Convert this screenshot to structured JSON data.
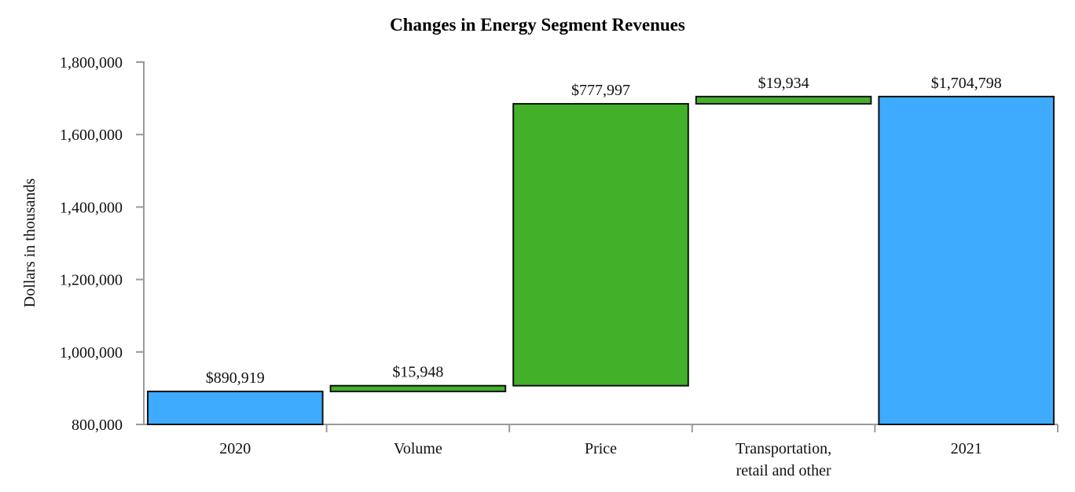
{
  "chart_data": {
    "type": "waterfall",
    "title": "Changes in Energy Segment Revenues",
    "xlabel": "",
    "ylabel": "Dollars in thousands",
    "ylim": [
      800000,
      1800000
    ],
    "yticks": [
      800000,
      1000000,
      1200000,
      1400000,
      1600000,
      1800000
    ],
    "ytick_labels": [
      "800,000",
      "1,000,000",
      "1,200,000",
      "1,400,000",
      "1,600,000",
      "1,800,000"
    ],
    "grid": false,
    "colors": {
      "total": "#3eabff",
      "increase": "#43b02a"
    },
    "bars": [
      {
        "category": [
          "2020"
        ],
        "kind": "total",
        "value": 890919,
        "start": 0,
        "end": 890919,
        "label": "$890,919"
      },
      {
        "category": [
          "Volume"
        ],
        "kind": "increase",
        "value": 15948,
        "start": 890919,
        "end": 906867,
        "label": "$15,948"
      },
      {
        "category": [
          "Price"
        ],
        "kind": "increase",
        "value": 777997,
        "start": 906867,
        "end": 1684864,
        "label": "$777,997"
      },
      {
        "category": [
          "Transportation,",
          "retail and other"
        ],
        "kind": "increase",
        "value": 19934,
        "start": 1684864,
        "end": 1704798,
        "label": "$19,934"
      },
      {
        "category": [
          "2021"
        ],
        "kind": "total",
        "value": 1704798,
        "start": 0,
        "end": 1704798,
        "label": "$1,704,798"
      }
    ]
  }
}
